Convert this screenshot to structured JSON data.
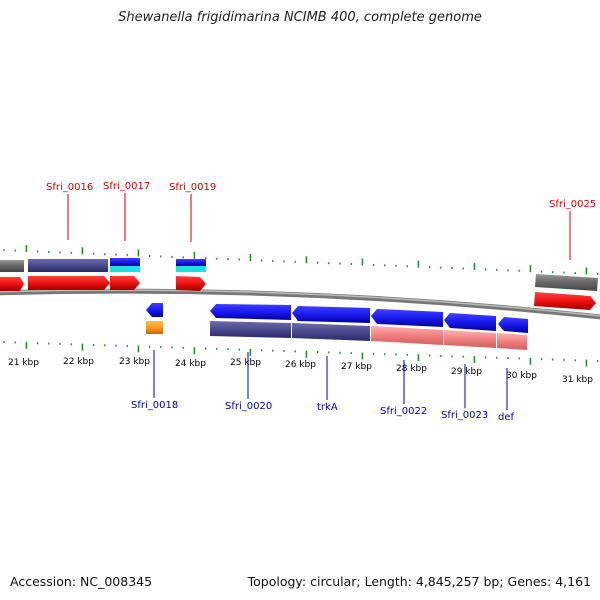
{
  "title": "Shewanella frigidimarina NCIMB 400, complete genome",
  "footer": {
    "accession": "Accession: NC_008345",
    "summary": "Topology: circular; Length: 4,845,257 bp; Genes: 4,161"
  },
  "scale_labels": [
    "21 kbp",
    "22 kbp",
    "23 kbp",
    "24 kbp",
    "25 kbp",
    "26 kbp",
    "27 kbp",
    "28 kbp",
    "29 kbp",
    "30 kbp",
    "31 kbp"
  ],
  "top_gene_labels": [
    "Sfri_0016",
    "Sfri_0017",
    "Sfri_0019",
    "Sfri_0025"
  ],
  "bottom_gene_labels": [
    "Sfri_0018",
    "Sfri_0020",
    "trkA",
    "Sfri_0022",
    "Sfri_0023",
    "def"
  ],
  "colors": {
    "forward_gene": "#ee1111",
    "reverse_gene": "#1a1aee",
    "cds_dark": "#4a4a8c",
    "cds_light": "#f08080",
    "cyan": "#22dddd",
    "orange": "#ff9922",
    "tick": "#2e8b2e",
    "label_top": "#cc0000",
    "label_bottom": "#0000b0"
  }
}
